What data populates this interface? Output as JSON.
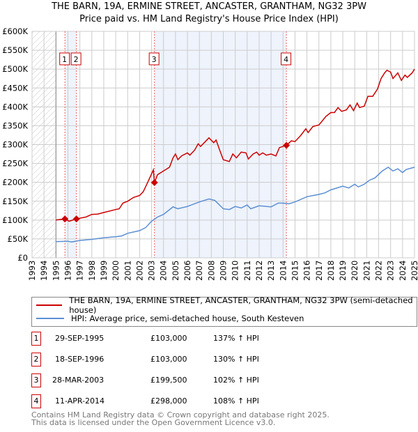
{
  "header": {
    "title": "THE BARN, 19A, ERMINE STREET, ANCASTER, GRANTHAM, NG32 3PW",
    "subtitle": "Price paid vs. HM Land Registry's House Price Index (HPI)"
  },
  "chart_data": {
    "type": "line",
    "xlim": [
      1993,
      2025
    ],
    "ylim": [
      0,
      600000
    ],
    "x_ticks": [
      "1993",
      "1994",
      "1995",
      "1996",
      "1997",
      "1998",
      "1999",
      "2000",
      "2001",
      "2002",
      "2003",
      "2004",
      "2005",
      "2006",
      "2007",
      "2008",
      "2009",
      "2010",
      "2011",
      "2012",
      "2013",
      "2014",
      "2015",
      "2016",
      "2017",
      "2018",
      "2019",
      "2020",
      "2021",
      "2022",
      "2023",
      "2024",
      "2025"
    ],
    "y_ticks": [
      {
        "v": 0,
        "label": "£0"
      },
      {
        "v": 50000,
        "label": "£50K"
      },
      {
        "v": 100000,
        "label": "£100K"
      },
      {
        "v": 150000,
        "label": "£150K"
      },
      {
        "v": 200000,
        "label": "£200K"
      },
      {
        "v": 250000,
        "label": "£250K"
      },
      {
        "v": 300000,
        "label": "£300K"
      },
      {
        "v": 350000,
        "label": "£350K"
      },
      {
        "v": 400000,
        "label": "£400K"
      },
      {
        "v": 450000,
        "label": "£450K"
      },
      {
        "v": 500000,
        "label": "£500K"
      },
      {
        "v": 550000,
        "label": "£550K"
      },
      {
        "v": 600000,
        "label": "£600K"
      }
    ],
    "grid": true,
    "series": [
      {
        "name": "THE BARN, 19A, ERMINE STREET, ANCASTER, GRANTHAM, NG32 3PW (semi-detached house)",
        "color": "#cc0000",
        "x": [
          1995.0,
          1995.75,
          1996.1,
          1996.7,
          1997.5,
          1998,
          1998.5,
          1999,
          2000,
          2000.3,
          2000.6,
          2001,
          2001.5,
          2002,
          2002.3,
          2002.6,
          2002.9,
          2003.15,
          2003.24,
          2003.5,
          2004,
          2004.5,
          2004.8,
          2005,
          2005.2,
          2005.5,
          2006,
          2006.2,
          2006.6,
          2006.9,
          2007.1,
          2007.5,
          2007.8,
          2008.2,
          2008.4,
          2008.7,
          2009,
          2009.5,
          2009.8,
          2010.1,
          2010.5,
          2010.9,
          2011.1,
          2011.5,
          2011.8,
          2012,
          2012.3,
          2012.6,
          2013,
          2013.4,
          2013.7,
          2014.28,
          2014.7,
          2015,
          2015.5,
          2015.9,
          2016.1,
          2016.5,
          2017,
          2017.6,
          2018,
          2018.3,
          2018.6,
          2018.9,
          2019.3,
          2019.6,
          2019.9,
          2020.2,
          2020.4,
          2020.8,
          2021.1,
          2021.5,
          2021.9,
          2022.2,
          2022.5,
          2022.7,
          2023,
          2023.2,
          2023.6,
          2023.9,
          2024.2,
          2024.4,
          2024.8,
          2025
        ],
        "values": [
          100000,
          103000,
          97000,
          103000,
          108000,
          115000,
          116000,
          120000,
          128000,
          130000,
          145000,
          150000,
          160000,
          165000,
          175000,
          195000,
          215000,
          233000,
          199500,
          220000,
          230000,
          240000,
          265000,
          275000,
          260000,
          270000,
          278000,
          272000,
          285000,
          302000,
          295000,
          308000,
          318000,
          305000,
          312000,
          285000,
          260000,
          255000,
          275000,
          265000,
          280000,
          278000,
          262000,
          275000,
          280000,
          272000,
          278000,
          272000,
          275000,
          270000,
          292000,
          298000,
          310000,
          308000,
          325000,
          342000,
          332000,
          348000,
          352000,
          375000,
          385000,
          385000,
          398000,
          388000,
          392000,
          405000,
          390000,
          410000,
          398000,
          402000,
          428000,
          428000,
          447000,
          475000,
          490000,
          497000,
          492000,
          475000,
          490000,
          470000,
          484000,
          478000,
          490000,
          500000
        ]
      },
      {
        "name": "HPI: Average price, semi-detached house, South Kesteven",
        "color": "#5b8fd4",
        "x": [
          1995,
          1996,
          1996.3,
          1997,
          1998,
          1999,
          2000,
          2000.5,
          2001,
          2002,
          2002.5,
          2003,
          2003.5,
          2004,
          2004.8,
          2005.2,
          2006,
          2007,
          2007.8,
          2008.3,
          2009,
          2009.5,
          2010,
          2010.5,
          2011,
          2011.3,
          2012,
          2013,
          2013.6,
          2014,
          2014.5,
          2015,
          2016,
          2017,
          2017.5,
          2018,
          2019,
          2019.5,
          2020,
          2020.3,
          2020.8,
          2021.2,
          2021.7,
          2022.3,
          2022.8,
          2023.2,
          2023.6,
          2024,
          2024.3,
          2025
        ],
        "values": [
          43000,
          44000,
          42000,
          46000,
          49000,
          53000,
          56000,
          58000,
          65000,
          72000,
          80000,
          97000,
          108000,
          115000,
          135000,
          130000,
          136000,
          148000,
          156000,
          152000,
          130000,
          128000,
          136000,
          132000,
          140000,
          130000,
          138000,
          135000,
          145000,
          145000,
          143000,
          148000,
          162000,
          168000,
          172000,
          180000,
          190000,
          185000,
          195000,
          188000,
          195000,
          205000,
          212000,
          230000,
          240000,
          230000,
          236000,
          226000,
          234000,
          240000
        ]
      }
    ],
    "sales": [
      {
        "n": "1",
        "x": 1995.75,
        "date": "29-SEP-1995",
        "price_value": 103000,
        "price": "£103,000",
        "hpi": "137% ↑ HPI"
      },
      {
        "n": "2",
        "x": 1996.71,
        "date": "18-SEP-1996",
        "price_value": 103000,
        "price": "£103,000",
        "hpi": "130% ↑ HPI"
      },
      {
        "n": "3",
        "x": 2003.24,
        "date": "28-MAR-2003",
        "price_value": 199500,
        "price": "£199,500",
        "hpi": "102% ↑ HPI"
      },
      {
        "n": "4",
        "x": 2014.28,
        "date": "11-APR-2014",
        "price_value": 298000,
        "price": "£298,000",
        "hpi": "108% ↑ HPI"
      }
    ]
  },
  "footer": {
    "line1": "Contains HM Land Registry data © Crown copyright and database right 2025.",
    "line2": "This data is licensed under the Open Government Licence v3.0."
  }
}
